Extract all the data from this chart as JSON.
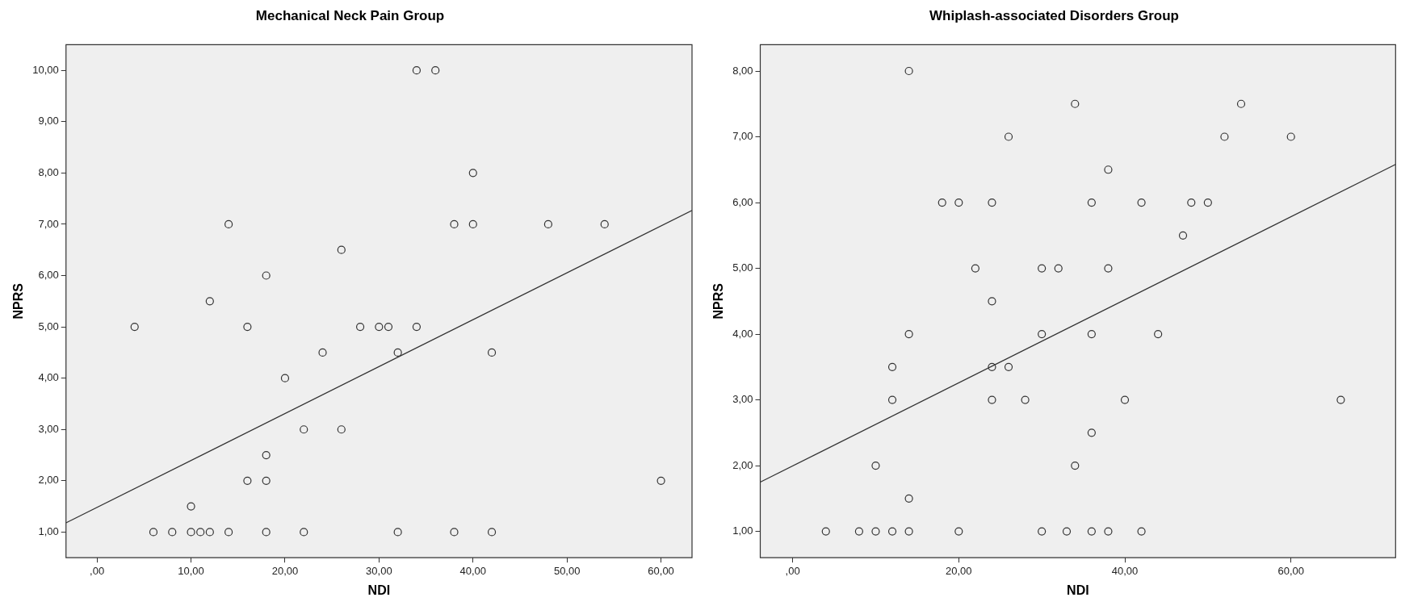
{
  "chart_data": [
    {
      "type": "scatter",
      "title": "Mechanical Neck Pain Group",
      "xlabel": "NDI",
      "ylabel": "NPRS",
      "legend": false,
      "grid": false,
      "xlim": [
        -3.3,
        63.3
      ],
      "xticks": [
        {
          "value": 0,
          "label": ",00"
        },
        {
          "value": 10,
          "label": "10,00"
        },
        {
          "value": 20,
          "label": "20,00"
        },
        {
          "value": 30,
          "label": "30,00"
        },
        {
          "value": 40,
          "label": "40,00"
        },
        {
          "value": 50,
          "label": "50,00"
        },
        {
          "value": 60,
          "label": "60,00"
        }
      ],
      "ylim": [
        0.5,
        10.5
      ],
      "yticks": [
        {
          "value": 1,
          "label": "1,00"
        },
        {
          "value": 2,
          "label": "2,00"
        },
        {
          "value": 3,
          "label": "3,00"
        },
        {
          "value": 4,
          "label": "4,00"
        },
        {
          "value": 5,
          "label": "5,00"
        },
        {
          "value": 6,
          "label": "6,00"
        },
        {
          "value": 7,
          "label": "7,00"
        },
        {
          "value": 8,
          "label": "8,00"
        },
        {
          "value": 9,
          "label": "9,00"
        },
        {
          "value": 10,
          "label": "10,00"
        }
      ],
      "series": [
        {
          "color": "#333333",
          "marker": "circle",
          "x": [
            4,
            6,
            8,
            10,
            10,
            11,
            12,
            12,
            14,
            14,
            16,
            16,
            18,
            18,
            18,
            18,
            20,
            22,
            22,
            24,
            26,
            26,
            28,
            30,
            31,
            32,
            32,
            34,
            34,
            36,
            38,
            38,
            40,
            40,
            42,
            42,
            48,
            54,
            60
          ],
          "values": [
            5,
            1,
            1,
            1,
            1.5,
            1,
            1,
            5.5,
            7,
            1,
            5,
            2,
            6,
            2.5,
            2,
            1,
            4,
            3,
            1,
            4.5,
            6.5,
            3,
            5,
            5,
            5,
            4.5,
            1,
            10,
            5,
            10,
            7,
            1,
            8,
            7,
            4.5,
            1,
            7,
            7,
            2
          ]
        },
        {
          "type": "line",
          "marker": "none",
          "color": "#333333",
          "x": [
            -3.3,
            63.3
          ],
          "values": [
            1.18,
            7.27
          ]
        }
      ]
    },
    {
      "type": "scatter",
      "title": "Whiplash-associated Disorders Group",
      "xlabel": "NDI",
      "ylabel": "NPRS",
      "legend": false,
      "grid": false,
      "xlim": [
        -3.9,
        72.6
      ],
      "xticks": [
        {
          "value": 0,
          "label": ",00"
        },
        {
          "value": 20,
          "label": "20,00"
        },
        {
          "value": 40,
          "label": "40,00"
        },
        {
          "value": 60,
          "label": "60,00"
        }
      ],
      "ylim": [
        0.6,
        8.4
      ],
      "yticks": [
        {
          "value": 1,
          "label": "1,00"
        },
        {
          "value": 2,
          "label": "2,00"
        },
        {
          "value": 3,
          "label": "3,00"
        },
        {
          "value": 4,
          "label": "4,00"
        },
        {
          "value": 5,
          "label": "5,00"
        },
        {
          "value": 6,
          "label": "6,00"
        },
        {
          "value": 7,
          "label": "7,00"
        },
        {
          "value": 8,
          "label": "8,00"
        }
      ],
      "series": [
        {
          "color": "#333333",
          "marker": "circle",
          "x": [
            4,
            8,
            10,
            12,
            14,
            20,
            30,
            14,
            26,
            18,
            20,
            24,
            22,
            30,
            24,
            14,
            30,
            12,
            24,
            26,
            12,
            24,
            28,
            10,
            14,
            34,
            54,
            52,
            60,
            38,
            36,
            42,
            48,
            50,
            47,
            32,
            38,
            36,
            44,
            40,
            66,
            36,
            34,
            33,
            36,
            38,
            42
          ],
          "values": [
            1,
            1,
            1,
            1,
            1,
            1,
            1,
            8,
            7,
            6,
            6,
            6,
            5,
            5,
            4.5,
            4,
            4,
            3.5,
            3.5,
            3.5,
            3,
            3,
            3,
            2,
            1.5,
            7.5,
            7.5,
            7,
            7,
            6.5,
            6,
            6,
            6,
            6,
            5.5,
            5,
            5,
            4,
            4,
            3,
            3,
            2.5,
            2,
            1,
            1,
            1,
            1
          ]
        },
        {
          "type": "line",
          "marker": "none",
          "color": "#333333",
          "x": [
            -3.9,
            72.6
          ],
          "values": [
            1.75,
            6.58
          ]
        }
      ]
    }
  ]
}
